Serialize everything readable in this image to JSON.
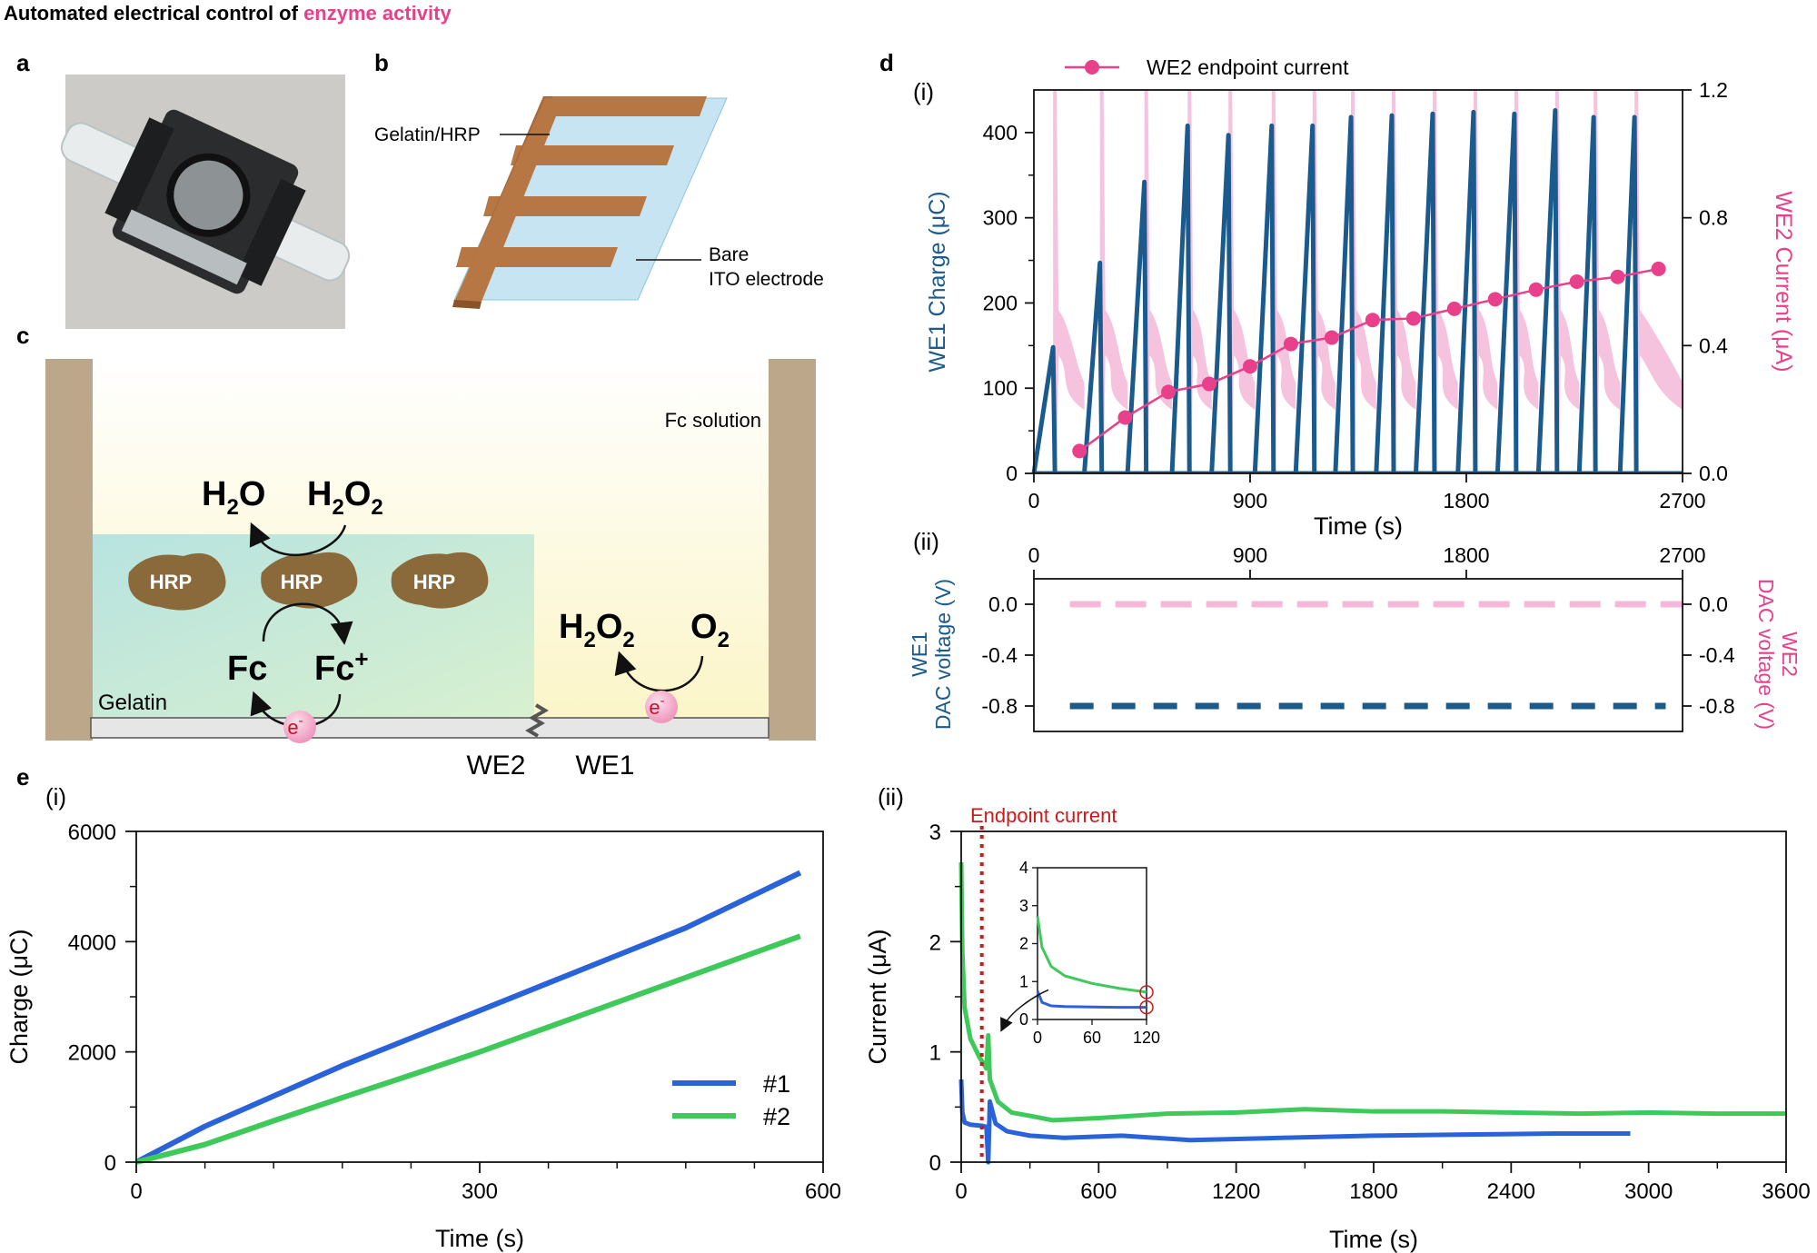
{
  "title": {
    "prefix": "Automated electrical control of ",
    "highlight": "enzyme activity"
  },
  "colors": {
    "pink": "#e8408a",
    "pink_light": "#f5b8d8",
    "navy": "#1a5a8c",
    "blue": "#2a63d9",
    "green": "#3ec95a",
    "red": "#cc1a1a"
  },
  "panels": {
    "a": "a",
    "b": "b",
    "c": "c",
    "d": "d",
    "e": "e"
  },
  "panel_b": {
    "label_gelatin": "Gelatin/HRP",
    "label_bare1": "Bare",
    "label_bare2": "ITO electrode"
  },
  "panel_c": {
    "fc_solution": "Fc solution",
    "gelatin": "Gelatin",
    "hrp": "HRP",
    "h": "H",
    "o": "O",
    "sub2": "2",
    "fc": "Fc",
    "plus": "+",
    "e": "e",
    "minus": "-",
    "we2": "WE2",
    "we1": "WE1"
  },
  "d_i": {
    "sub": "(i)",
    "legend": "WE2 endpoint current",
    "ylabel_left": "WE1 Charge (μC)",
    "ylabel_right": "WE2 Current (μA)",
    "xlabel": "Time (s)"
  },
  "d_ii": {
    "sub": "(ii)",
    "ylabel_left1": "WE1",
    "ylabel_left2": "DAC voltage (V)",
    "ylabel_right1": "WE2",
    "ylabel_right2": "DAC voltage (V)"
  },
  "e_i": {
    "sub": "(i)",
    "ylabel": "Charge (μC)",
    "xlabel": "Time (s)",
    "legend1": "#1",
    "legend2": "#2"
  },
  "e_ii": {
    "sub": "(ii)",
    "endpoint": "Endpoint current",
    "ylabel": "Current (μA)",
    "xlabel": "Time (s)"
  },
  "chart_data": [
    {
      "id": "d-i",
      "type": "line",
      "title": "",
      "xlabel": "Time (s)",
      "ylabel": "WE1 Charge (μC)",
      "y2label": "WE2 Current (μA)",
      "xlim": [
        0,
        2700
      ],
      "ylim": [
        0,
        450
      ],
      "y2lim": [
        0,
        1.2
      ],
      "xticks": [
        0,
        900,
        1800,
        2700
      ],
      "yticks": [
        0,
        100,
        200,
        300,
        400
      ],
      "y2ticks": [
        0.0,
        0.4,
        0.8,
        1.2
      ],
      "we1_pulses": [
        {
          "start": 0,
          "end": 80,
          "peak": 148
        },
        {
          "start": 210,
          "end": 275,
          "peak": 247
        },
        {
          "start": 390,
          "end": 460,
          "peak": 342
        },
        {
          "start": 575,
          "end": 640,
          "peak": 408
        },
        {
          "start": 740,
          "end": 810,
          "peak": 397
        },
        {
          "start": 920,
          "end": 990,
          "peak": 408
        },
        {
          "start": 1090,
          "end": 1160,
          "peak": 408
        },
        {
          "start": 1255,
          "end": 1320,
          "peak": 418
        },
        {
          "start": 1425,
          "end": 1490,
          "peak": 420
        },
        {
          "start": 1590,
          "end": 1660,
          "peak": 422
        },
        {
          "start": 1765,
          "end": 1830,
          "peak": 424
        },
        {
          "start": 1930,
          "end": 2000,
          "peak": 422
        },
        {
          "start": 2100,
          "end": 2170,
          "peak": 426
        },
        {
          "start": 2270,
          "end": 2330,
          "peak": 418
        },
        {
          "start": 2440,
          "end": 2500,
          "peak": 418
        }
      ],
      "series": [
        {
          "name": "WE2 endpoint current",
          "x": [
            190,
            380,
            560,
            730,
            900,
            1070,
            1240,
            1410,
            1580,
            1750,
            1920,
            2090,
            2260,
            2430,
            2600
          ],
          "values": [
            0.07,
            0.175,
            0.255,
            0.28,
            0.335,
            0.405,
            0.425,
            0.48,
            0.485,
            0.515,
            0.545,
            0.575,
            0.6,
            0.615,
            0.64
          ]
        }
      ]
    },
    {
      "id": "d-ii",
      "type": "line",
      "xlim": [
        0,
        2700
      ],
      "ylim": [
        -1.0,
        0.2
      ],
      "xticks": [
        0,
        900,
        1800,
        2700
      ],
      "yticks": [
        0.0,
        -0.4,
        -0.8
      ],
      "series": [
        {
          "name": "WE1 DAC voltage",
          "value": -0.8
        },
        {
          "name": "WE2 DAC voltage",
          "value": 0.0
        }
      ]
    },
    {
      "id": "e-i",
      "type": "line",
      "xlabel": "Time (s)",
      "ylabel": "Charge (μC)",
      "xlim": [
        0,
        600
      ],
      "ylim": [
        0,
        6000
      ],
      "xticks": [
        0,
        300,
        600
      ],
      "yticks": [
        0,
        2000,
        4000,
        6000
      ],
      "series": [
        {
          "name": "#1",
          "x": [
            0,
            60,
            120,
            180,
            240,
            300,
            360,
            420,
            480,
            580
          ],
          "values": [
            0,
            650,
            1200,
            1750,
            2250,
            2750,
            3250,
            3750,
            4250,
            5250
          ]
        },
        {
          "name": "#2",
          "x": [
            0,
            60,
            120,
            180,
            240,
            300,
            360,
            420,
            480,
            580
          ],
          "values": [
            0,
            320,
            750,
            1170,
            1580,
            2000,
            2450,
            2900,
            3350,
            4100
          ]
        }
      ],
      "legend": "bottom-right"
    },
    {
      "id": "e-ii",
      "type": "line",
      "xlabel": "Time (s)",
      "ylabel": "Current (μA)",
      "xlim": [
        0,
        3600
      ],
      "ylim": [
        0,
        3
      ],
      "xticks": [
        0,
        600,
        1200,
        1800,
        2400,
        3000,
        3600
      ],
      "yticks": [
        0,
        1,
        2,
        3
      ],
      "endpoint_x": 90,
      "series": [
        {
          "name": "#1",
          "x": [
            0,
            5,
            15,
            40,
            90,
            110,
            118,
            125,
            150,
            200,
            300,
            450,
            700,
            1000,
            1400,
            1800,
            2200,
            2600,
            2920
          ],
          "values": [
            0.75,
            0.45,
            0.36,
            0.34,
            0.33,
            0.32,
            0.0,
            0.55,
            0.35,
            0.28,
            0.24,
            0.22,
            0.24,
            0.2,
            0.22,
            0.24,
            0.25,
            0.26,
            0.26
          ]
        },
        {
          "name": "#2",
          "x": [
            0,
            5,
            15,
            40,
            80,
            110,
            118,
            125,
            160,
            220,
            300,
            400,
            600,
            900,
            1200,
            1500,
            1800,
            2100,
            2400,
            2700,
            3000,
            3300,
            3600
          ],
          "values": [
            2.72,
            1.9,
            1.4,
            1.12,
            0.95,
            0.85,
            1.15,
            0.75,
            0.55,
            0.45,
            0.42,
            0.38,
            0.4,
            0.44,
            0.45,
            0.48,
            0.46,
            0.46,
            0.45,
            0.44,
            0.45,
            0.44,
            0.44
          ]
        }
      ],
      "inset": {
        "xlim": [
          0,
          120
        ],
        "ylim": [
          0,
          4
        ],
        "xticks": [
          0,
          60,
          120
        ],
        "yticks": [
          0,
          1,
          2,
          3,
          4
        ],
        "series": [
          {
            "name": "#1",
            "x": [
              0,
              5,
              15,
              30,
              60,
              90,
              120
            ],
            "values": [
              0.75,
              0.45,
              0.36,
              0.34,
              0.33,
              0.32,
              0.32
            ]
          },
          {
            "name": "#2",
            "x": [
              0,
              5,
              15,
              30,
              60,
              90,
              120
            ],
            "values": [
              2.72,
              1.9,
              1.4,
              1.15,
              0.95,
              0.82,
              0.72
            ]
          }
        ]
      }
    }
  ]
}
